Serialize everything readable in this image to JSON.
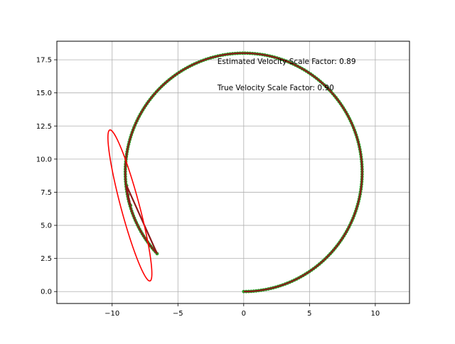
{
  "chart_data": {
    "type": "scatter",
    "xlim": [
      -14.2,
      12.6
    ],
    "ylim": [
      -0.9,
      18.9
    ],
    "x_ticks": [
      -10,
      -5,
      0,
      5,
      10
    ],
    "x_tick_labels": [
      "−10",
      "−5",
      "0",
      "5",
      "10"
    ],
    "y_ticks": [
      0.0,
      2.5,
      5.0,
      7.5,
      10.0,
      12.5,
      15.0,
      17.5
    ],
    "y_tick_labels": [
      "0.0",
      "2.5",
      "5.0",
      "7.5",
      "10.0",
      "12.5",
      "15.0",
      "17.5"
    ],
    "grid": true,
    "title": "",
    "xlabel": "",
    "ylabel": "",
    "annotations": [
      {
        "text": "Estimated Velocity Scale Factor: 0.89",
        "x": -2.0,
        "y": 17.4
      },
      {
        "text": "True Velocity Scale Factor: 0.90",
        "x": -2.0,
        "y": 15.4
      }
    ],
    "series": [
      {
        "kind": "points",
        "color": "#2ca02c",
        "trajectory": {
          "center": [
            0,
            9
          ],
          "radius": 9,
          "angle_start_deg": -90,
          "angle_end_deg": 223,
          "tail": [
            [
              -8.9,
              8.0
            ],
            [
              -8.8,
              7.3
            ],
            [
              -8.6,
              6.5
            ]
          ]
        },
        "point_count": 260
      },
      {
        "kind": "line",
        "color": "#8b1a1a",
        "trajectory": {
          "center": [
            0,
            9
          ],
          "radius": 9,
          "angle_start_deg": -90,
          "angle_end_deg": 223,
          "tail": [
            [
              -8.9,
              8.0
            ],
            [
              -8.8,
              7.3
            ],
            [
              -8.6,
              6.5
            ]
          ]
        }
      },
      {
        "kind": "ellipse",
        "color": "#ff0000",
        "center": [
          -8.65,
          6.5
        ],
        "semi_major": 5.9,
        "semi_minor": 0.7,
        "angle_deg": 105
      }
    ],
    "colors": {
      "axis": "#000000",
      "grid": "#b0b0b0"
    }
  }
}
